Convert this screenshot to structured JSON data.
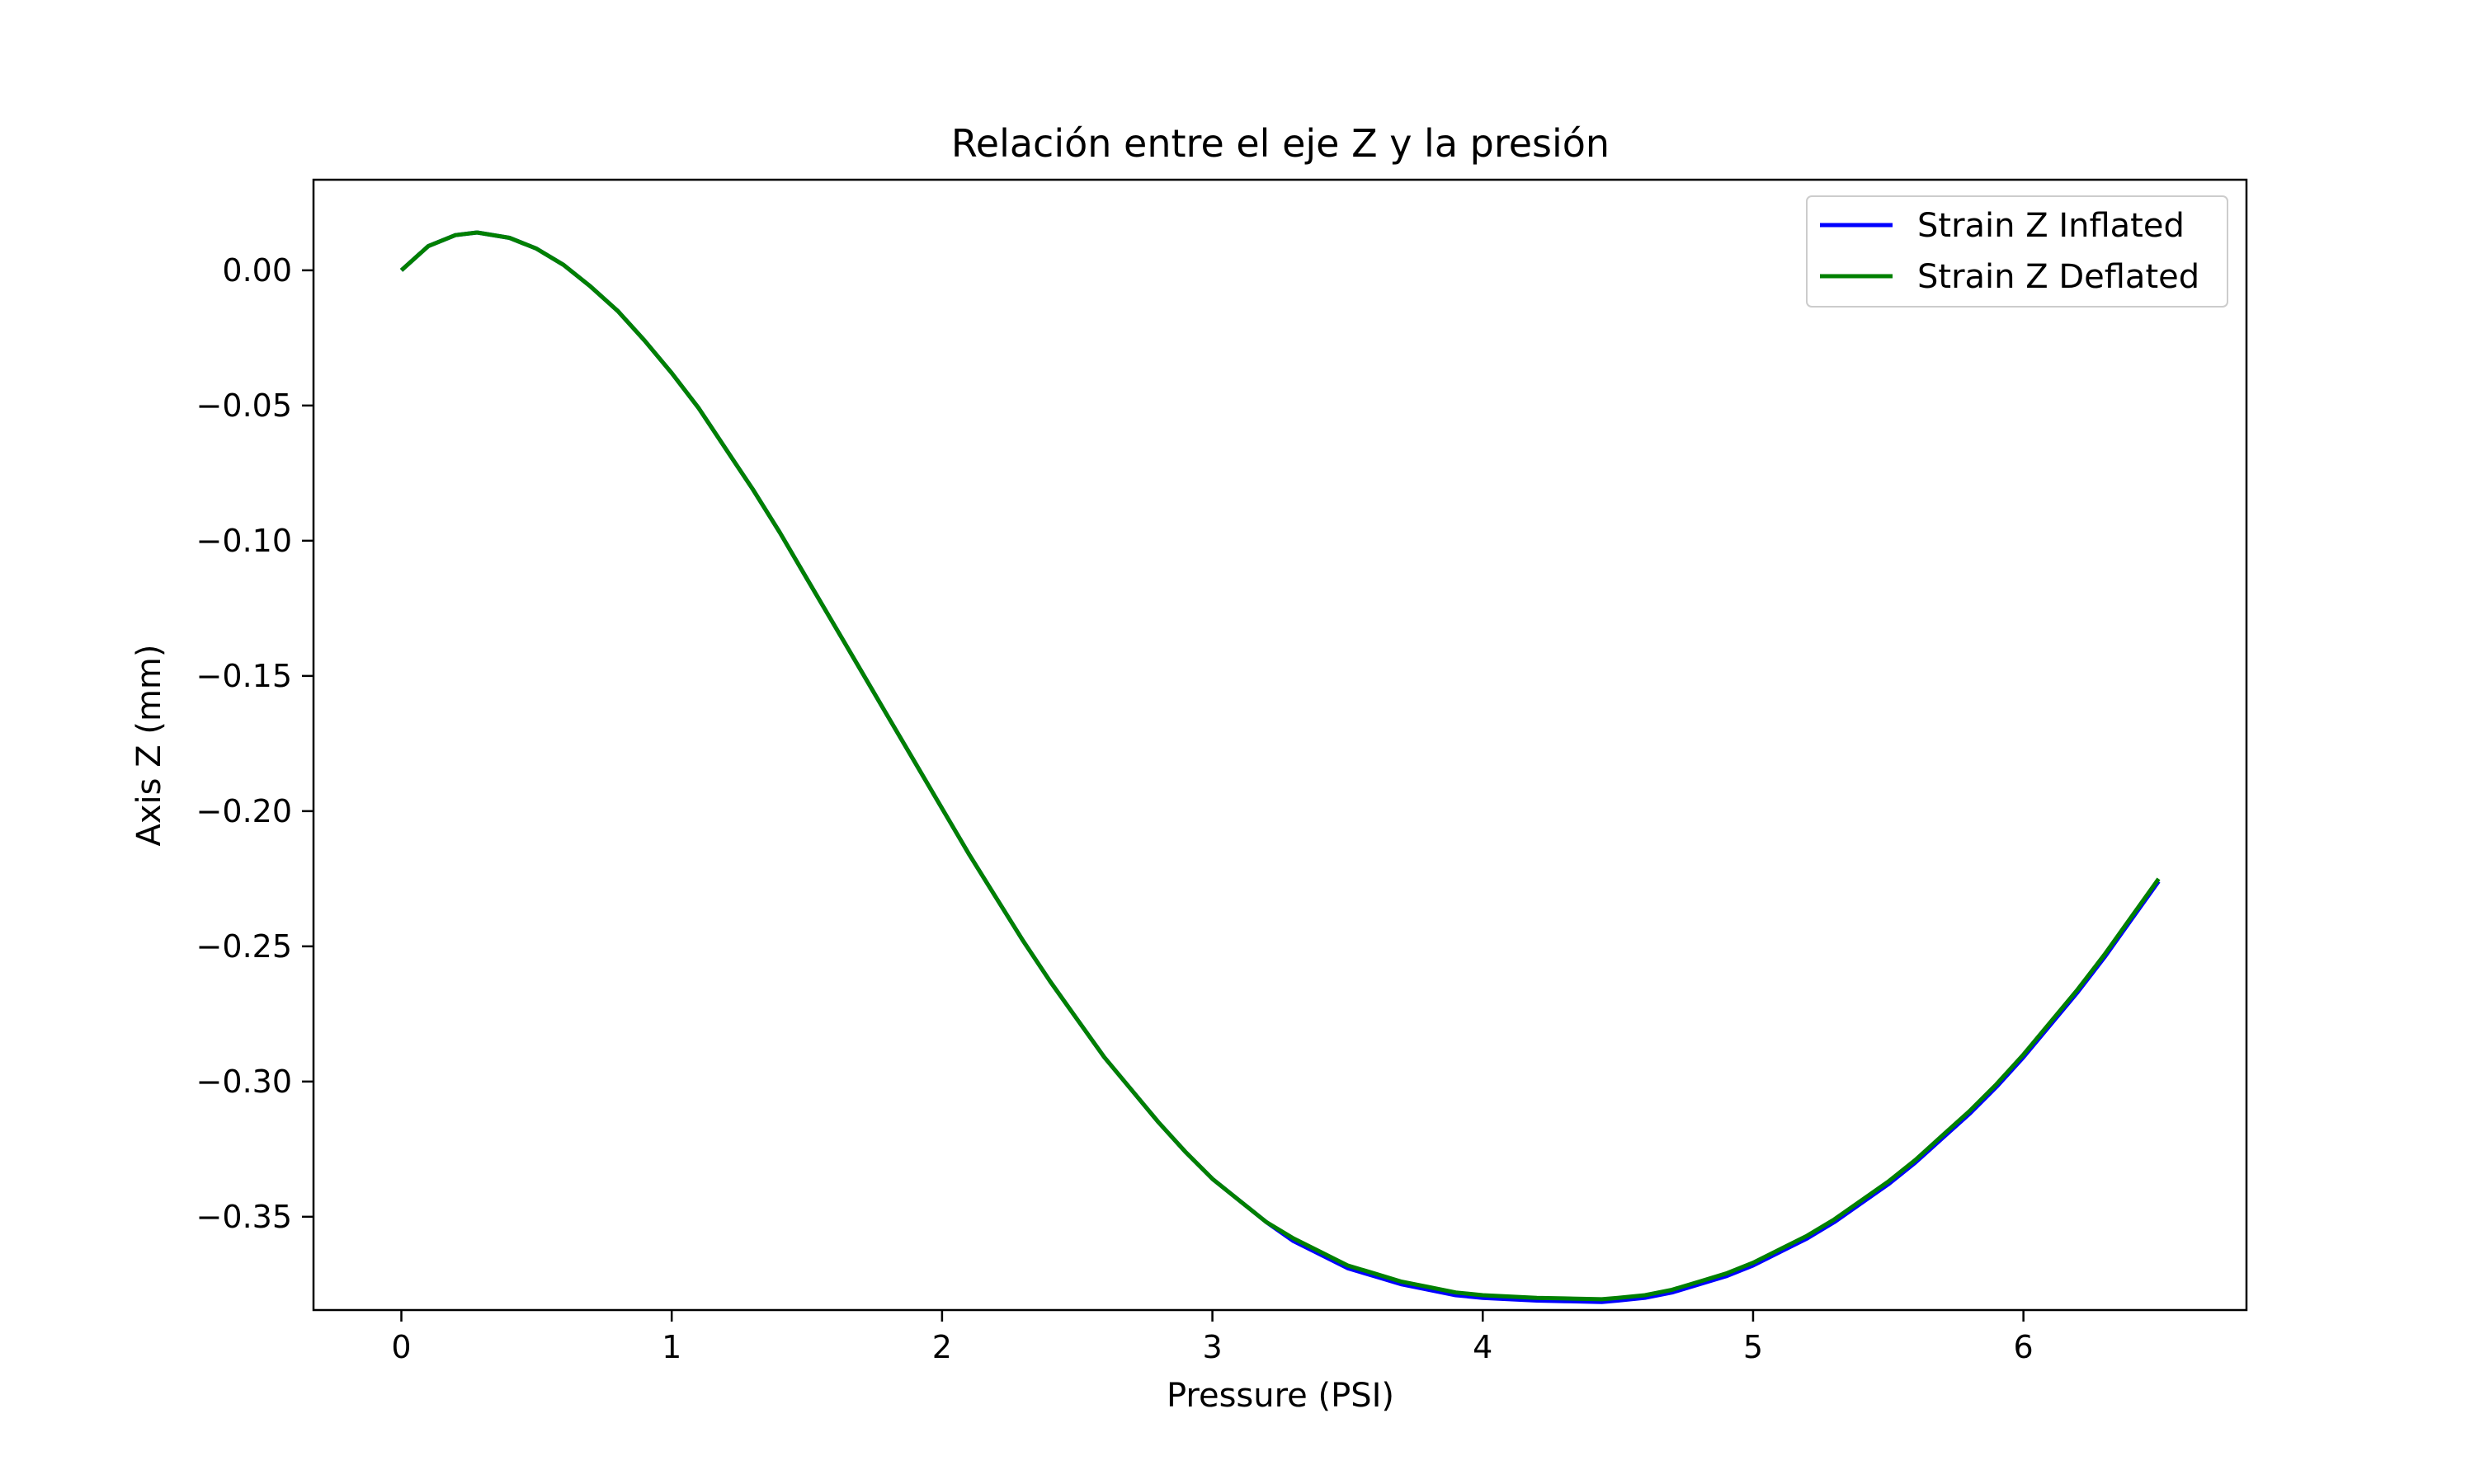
{
  "chart_data": {
    "type": "line",
    "title": "Relación entre el eje Z y la presión",
    "xlabel": "Pressure (PSI)",
    "ylabel": "Axis Z (mm)",
    "xlim": [
      -0.325,
      6.825
    ],
    "ylim": [
      -0.3845,
      0.0335
    ],
    "xticks": [
      0,
      1,
      2,
      3,
      4,
      5,
      6
    ],
    "xtick_labels": [
      "0",
      "1",
      "2",
      "3",
      "4",
      "5",
      "6"
    ],
    "yticks": [
      0.0,
      -0.05,
      -0.1,
      -0.15,
      -0.2,
      -0.25,
      -0.3,
      -0.35
    ],
    "ytick_labels": [
      "0.00",
      "−0.05",
      "−0.10",
      "−0.15",
      "−0.20",
      "−0.25",
      "−0.30",
      "−0.35"
    ],
    "grid": false,
    "legend_position": "top-right",
    "series": [
      {
        "name": "Strain Z Inflated",
        "color": "#0000ff",
        "x": [
          0,
          0.1,
          0.2,
          0.28,
          0.4,
          0.5,
          0.6,
          0.7,
          0.8,
          0.9,
          1.0,
          1.1,
          1.2,
          1.3,
          1.4,
          1.5,
          1.6,
          1.7,
          1.8,
          1.9,
          2.0,
          2.1,
          2.2,
          2.3,
          2.4,
          2.5,
          2.6,
          2.7,
          2.8,
          2.9,
          3.0,
          3.1,
          3.2,
          3.3,
          3.4,
          3.5,
          3.6,
          3.7,
          3.8,
          3.9,
          4.0,
          4.1,
          4.2,
          4.3,
          4.44,
          4.5,
          4.6,
          4.7,
          4.8,
          4.9,
          5.0,
          5.1,
          5.2,
          5.3,
          5.4,
          5.5,
          5.6,
          5.7,
          5.8,
          5.9,
          6.0,
          6.1,
          6.2,
          6.3,
          6.4,
          6.5
        ],
        "y": [
          0.0,
          0.009,
          0.013,
          0.014,
          0.012,
          0.008,
          0.002,
          -0.006,
          -0.015,
          -0.026,
          -0.038,
          -0.051,
          -0.066,
          -0.081,
          -0.097,
          -0.114,
          -0.131,
          -0.148,
          -0.165,
          -0.182,
          -0.199,
          -0.216,
          -0.232,
          -0.248,
          -0.263,
          -0.277,
          -0.291,
          -0.303,
          -0.315,
          -0.326,
          -0.336,
          -0.344,
          -0.352,
          -0.359,
          -0.364,
          -0.369,
          -0.372,
          -0.375,
          -0.377,
          -0.379,
          -0.38,
          -0.3805,
          -0.381,
          -0.3812,
          -0.3815,
          -0.381,
          -0.38,
          -0.378,
          -0.375,
          -0.372,
          -0.368,
          -0.363,
          -0.358,
          -0.352,
          -0.345,
          -0.338,
          -0.33,
          -0.321,
          -0.312,
          -0.302,
          -0.291,
          -0.279,
          -0.267,
          -0.254,
          -0.24,
          -0.226
        ]
      },
      {
        "name": "Strain Z Deflated",
        "color": "#008000",
        "x": [
          0,
          0.1,
          0.2,
          0.28,
          0.4,
          0.5,
          0.6,
          0.7,
          0.8,
          0.9,
          1.0,
          1.1,
          1.2,
          1.3,
          1.4,
          1.5,
          1.6,
          1.7,
          1.8,
          1.9,
          2.0,
          2.1,
          2.2,
          2.3,
          2.4,
          2.5,
          2.6,
          2.7,
          2.8,
          2.9,
          3.0,
          3.1,
          3.2,
          3.3,
          3.4,
          3.5,
          3.6,
          3.7,
          3.8,
          3.9,
          4.0,
          4.1,
          4.2,
          4.3,
          4.44,
          4.5,
          4.6,
          4.7,
          4.8,
          4.9,
          5.0,
          5.1,
          5.2,
          5.3,
          5.4,
          5.5,
          5.6,
          5.7,
          5.8,
          5.9,
          6.0,
          6.1,
          6.2,
          6.3,
          6.4,
          6.5
        ],
        "y": [
          0.0,
          0.009,
          0.013,
          0.014,
          0.012,
          0.008,
          0.002,
          -0.006,
          -0.015,
          -0.026,
          -0.038,
          -0.051,
          -0.066,
          -0.081,
          -0.097,
          -0.114,
          -0.131,
          -0.148,
          -0.165,
          -0.182,
          -0.199,
          -0.216,
          -0.232,
          -0.248,
          -0.263,
          -0.277,
          -0.291,
          -0.303,
          -0.315,
          -0.326,
          -0.336,
          -0.344,
          -0.352,
          -0.358,
          -0.363,
          -0.368,
          -0.371,
          -0.374,
          -0.376,
          -0.378,
          -0.379,
          -0.3795,
          -0.38,
          -0.3802,
          -0.3805,
          -0.38,
          -0.379,
          -0.377,
          -0.374,
          -0.371,
          -0.367,
          -0.362,
          -0.357,
          -0.351,
          -0.344,
          -0.337,
          -0.329,
          -0.32,
          -0.311,
          -0.301,
          -0.29,
          -0.278,
          -0.266,
          -0.253,
          -0.239,
          -0.225
        ]
      }
    ]
  }
}
